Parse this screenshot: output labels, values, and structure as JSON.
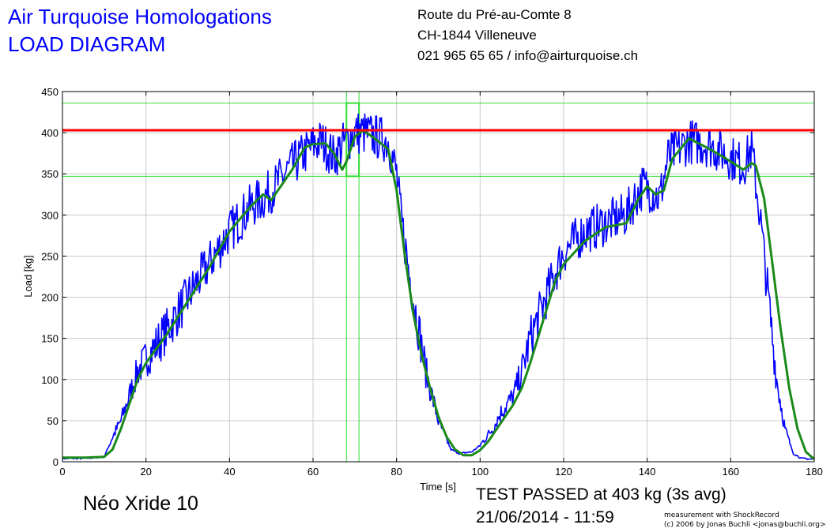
{
  "header": {
    "company": "Air Turquoise Homologations",
    "doc_type": "LOAD DIAGRAM",
    "address_line1": "Route du Pré-au-Comte 8",
    "address_line2": "CH-1844 Villeneuve",
    "contact": "021 965 65 65 / info@airturquoise.ch"
  },
  "footer": {
    "glider": "Néo Xride 10",
    "result": "TEST PASSED at 403 kg (3s avg)",
    "datetime": "21/06/2014 - 11:59",
    "credit_line1": "measurement with ShockRecord",
    "credit_line2": "(c) 2006 by Jonas Buchli <jonas@buchli.org>"
  },
  "colors": {
    "raw": "#0000ff",
    "avg": "#1a8a1a",
    "limit": "#ff0000",
    "marker": "#33dd33",
    "grid": "#c9c9c9"
  },
  "chart_data": {
    "type": "line",
    "title": "",
    "xlabel": "Time [s]",
    "ylabel": "Load [kg]",
    "xlim": [
      0,
      180
    ],
    "ylim": [
      0,
      450
    ],
    "xticks": [
      0,
      20,
      40,
      60,
      80,
      100,
      120,
      140,
      160,
      180
    ],
    "yticks": [
      0,
      50,
      100,
      150,
      200,
      250,
      300,
      350,
      400,
      450
    ],
    "grid": true,
    "series": [
      {
        "color": "#0000ff",
        "noise": 28,
        "x": [
          0,
          5,
          10,
          12,
          14,
          16,
          18,
          20,
          25,
          30,
          35,
          40,
          45,
          48,
          50,
          55,
          60,
          62,
          65,
          67,
          70,
          72,
          75,
          78,
          80,
          81,
          83,
          85,
          87,
          90,
          93,
          95,
          98,
          100,
          103,
          105,
          108,
          110,
          112,
          115,
          118,
          120,
          125,
          130,
          135,
          137,
          139,
          141,
          143,
          145,
          150,
          155,
          160,
          163,
          165,
          167,
          169,
          171,
          173,
          175,
          177,
          180
        ],
        "y": [
          4,
          4,
          6,
          30,
          50,
          80,
          110,
          125,
          160,
          200,
          240,
          280,
          310,
          320,
          330,
          360,
          385,
          390,
          370,
          385,
          400,
          400,
          395,
          390,
          350,
          300,
          230,
          170,
          110,
          50,
          15,
          10,
          12,
          20,
          40,
          60,
          80,
          110,
          150,
          190,
          230,
          255,
          280,
          290,
          300,
          320,
          335,
          330,
          320,
          370,
          390,
          385,
          370,
          360,
          380,
          300,
          200,
          100,
          40,
          10,
          4,
          3
        ]
      },
      {
        "color": "#1a8a1a",
        "noise": 0,
        "x": [
          0,
          5,
          10,
          12,
          14,
          16,
          18,
          20,
          25,
          30,
          35,
          40,
          45,
          48,
          50,
          55,
          58,
          60,
          63,
          65,
          67,
          68,
          70,
          72,
          75,
          78,
          80,
          82,
          84,
          86,
          88,
          90,
          92,
          94,
          96,
          98,
          100,
          102,
          104,
          106,
          108,
          110,
          112,
          115,
          118,
          120,
          125,
          130,
          135,
          138,
          140,
          142,
          144,
          146,
          150,
          155,
          160,
          163,
          165,
          166,
          168,
          170,
          172,
          174,
          176,
          178,
          180
        ],
        "y": [
          5,
          5,
          6,
          15,
          40,
          70,
          100,
          120,
          155,
          195,
          235,
          280,
          310,
          325,
          318,
          355,
          382,
          386,
          387,
          375,
          355,
          365,
          395,
          403,
          392,
          380,
          330,
          250,
          180,
          130,
          90,
          55,
          30,
          15,
          8,
          8,
          14,
          25,
          40,
          55,
          70,
          90,
          120,
          170,
          220,
          240,
          268,
          285,
          290,
          320,
          335,
          325,
          330,
          368,
          393,
          380,
          365,
          355,
          363,
          360,
          320,
          240,
          160,
          90,
          40,
          12,
          3
        ]
      }
    ],
    "limit_line": 403,
    "marker_box": {
      "x": [
        68,
        71
      ],
      "y": [
        347,
        436
      ]
    }
  }
}
